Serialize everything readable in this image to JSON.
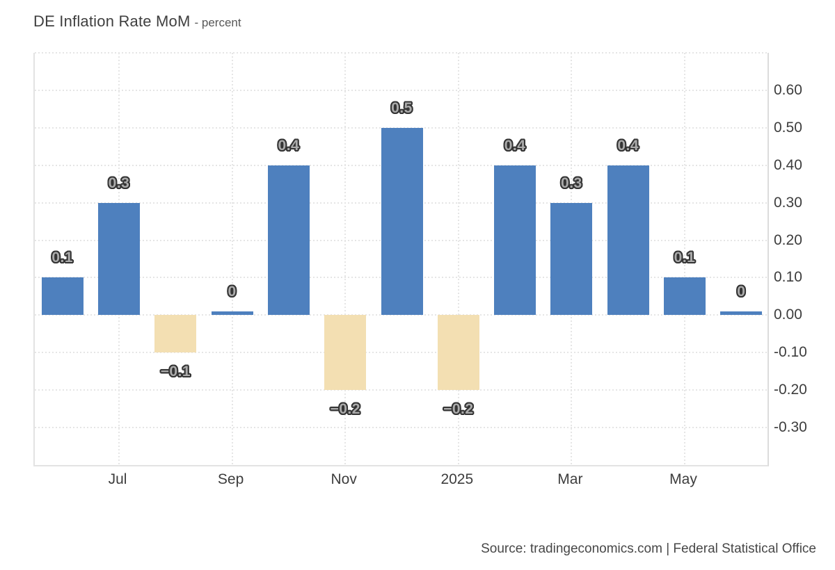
{
  "title": {
    "main": "DE Inflation Rate MoM",
    "subtitle": "- percent"
  },
  "source": "Source: tradingeconomics.com | Federal Statistical Office",
  "colors": {
    "positive_bar": "#4e80be",
    "negative_bar": "#f3dfb2",
    "grid": "#e5e5e5",
    "axis": "#e3e3e3",
    "tick_text": "#3d3d3d",
    "value_label_fill": "#ababab",
    "value_label_outline": "#343434"
  },
  "chart_data": {
    "type": "bar",
    "title": "DE Inflation Rate MoM",
    "ylabel": "percent",
    "values": [
      0.1,
      0.3,
      -0.1,
      0,
      0.4,
      -0.2,
      0.5,
      -0.2,
      0.4,
      0.3,
      0.4,
      0.1,
      0
    ],
    "value_labels": [
      "0.1",
      "0.3",
      "−0.1",
      "0",
      "0.4",
      "−0.2",
      "0.5",
      "−0.2",
      "0.4",
      "0.3",
      "0.4",
      "0.1",
      "0"
    ],
    "x_ticks": [
      {
        "label": "Jul",
        "bar_index": 1
      },
      {
        "label": "Sep",
        "bar_index": 3
      },
      {
        "label": "Nov",
        "bar_index": 5
      },
      {
        "label": "2025",
        "bar_index": 7
      },
      {
        "label": "Mar",
        "bar_index": 9
      },
      {
        "label": "May",
        "bar_index": 11
      }
    ],
    "y_ticks": [
      {
        "label": "0.60",
        "value": 0.6
      },
      {
        "label": "0.50",
        "value": 0.5
      },
      {
        "label": "0.40",
        "value": 0.4
      },
      {
        "label": "0.30",
        "value": 0.3
      },
      {
        "label": "0.20",
        "value": 0.2
      },
      {
        "label": "0.10",
        "value": 0.1
      },
      {
        "label": "0.00",
        "value": 0.0
      },
      {
        "label": "-0.10",
        "value": -0.1
      },
      {
        "label": "-0.20",
        "value": -0.2
      },
      {
        "label": "-0.30",
        "value": -0.3
      }
    ],
    "ylim": [
      -0.4,
      0.7
    ],
    "grid": true,
    "legend": false
  }
}
